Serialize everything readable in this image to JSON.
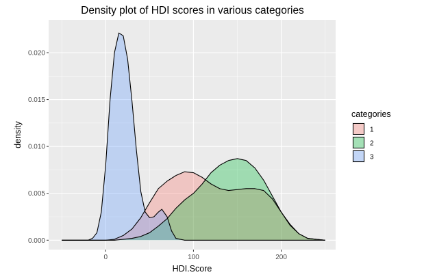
{
  "chart_data": {
    "type": "area",
    "subtype": "density",
    "title": "Density plot of HDI scores in various categories",
    "xlabel": "HDI.Score",
    "ylabel": "density",
    "xlim": [
      -65,
      262
    ],
    "ylim": [
      -0.001,
      0.0235
    ],
    "x_ticks": [
      0,
      100,
      200
    ],
    "y_ticks": [
      0.0,
      0.005,
      0.01,
      0.015,
      0.02
    ],
    "x_tick_labels": [
      "0",
      "100",
      "200"
    ],
    "y_tick_labels": [
      "0.000",
      "0.005",
      "0.010",
      "0.015",
      "0.020"
    ],
    "grid": true,
    "legend": {
      "title": "categories",
      "position": "right"
    },
    "series": [
      {
        "name": "1",
        "color": "#F8766D",
        "points": [
          [
            -50,
            0
          ],
          [
            0,
            0
          ],
          [
            10,
            0.0001
          ],
          [
            20,
            0.0005
          ],
          [
            30,
            0.0012
          ],
          [
            40,
            0.0024
          ],
          [
            50,
            0.004
          ],
          [
            60,
            0.0055
          ],
          [
            70,
            0.0063
          ],
          [
            80,
            0.0069
          ],
          [
            90,
            0.0073
          ],
          [
            100,
            0.0072
          ],
          [
            110,
            0.0067
          ],
          [
            120,
            0.006
          ],
          [
            130,
            0.0055
          ],
          [
            140,
            0.0053
          ],
          [
            150,
            0.0054
          ],
          [
            160,
            0.0055
          ],
          [
            170,
            0.0055
          ],
          [
            180,
            0.0053
          ],
          [
            190,
            0.0044
          ],
          [
            200,
            0.003
          ],
          [
            210,
            0.0017
          ],
          [
            220,
            0.0007
          ],
          [
            230,
            0.0002
          ],
          [
            240,
            0.0001
          ],
          [
            250,
            0
          ]
        ]
      },
      {
        "name": "2",
        "color": "#00BA38",
        "points": [
          [
            -50,
            0
          ],
          [
            10,
            0
          ],
          [
            20,
            0.0001
          ],
          [
            30,
            0.0002
          ],
          [
            40,
            0.0004
          ],
          [
            50,
            0.0008
          ],
          [
            60,
            0.0015
          ],
          [
            70,
            0.0023
          ],
          [
            80,
            0.0034
          ],
          [
            90,
            0.0043
          ],
          [
            100,
            0.005
          ],
          [
            110,
            0.006
          ],
          [
            120,
            0.0072
          ],
          [
            130,
            0.008
          ],
          [
            140,
            0.0085
          ],
          [
            150,
            0.0087
          ],
          [
            160,
            0.0085
          ],
          [
            170,
            0.0077
          ],
          [
            180,
            0.0064
          ],
          [
            190,
            0.0047
          ],
          [
            200,
            0.003
          ],
          [
            210,
            0.0016
          ],
          [
            220,
            0.0007
          ],
          [
            230,
            0.0002
          ],
          [
            240,
            0.0001
          ],
          [
            250,
            0
          ]
        ]
      },
      {
        "name": "3",
        "color": "#619CFF",
        "points": [
          [
            -50,
            0
          ],
          [
            -20,
            0
          ],
          [
            -15,
            0.0002
          ],
          [
            -10,
            0.0008
          ],
          [
            -5,
            0.003
          ],
          [
            0,
            0.008
          ],
          [
            5,
            0.015
          ],
          [
            10,
            0.02
          ],
          [
            15,
            0.0221
          ],
          [
            20,
            0.0218
          ],
          [
            25,
            0.0193
          ],
          [
            30,
            0.0148
          ],
          [
            35,
            0.0096
          ],
          [
            40,
            0.0052
          ],
          [
            45,
            0.003
          ],
          [
            50,
            0.0024
          ],
          [
            55,
            0.0025
          ],
          [
            60,
            0.003
          ],
          [
            64,
            0.0033
          ],
          [
            70,
            0.0025
          ],
          [
            75,
            0.001
          ],
          [
            80,
            0.0002
          ],
          [
            90,
            0
          ],
          [
            250,
            0
          ]
        ]
      }
    ]
  }
}
